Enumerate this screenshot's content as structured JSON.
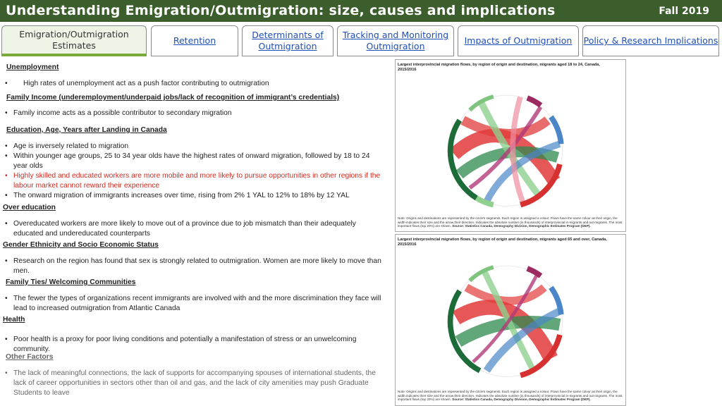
{
  "header": {
    "title": "Understanding Emigration/Outmigration: size, causes and implications",
    "term": "Fall 2019"
  },
  "tabs": [
    {
      "label": "Emigration/Outmigration Estimates"
    },
    {
      "label": "Retention"
    },
    {
      "label": "Determinants of Outmigration"
    },
    {
      "label": "Tracking and Monitoring Outmigration"
    },
    {
      "label": "Impacts of Outmigration"
    },
    {
      "label": "Policy & Research Implications"
    }
  ],
  "sections": {
    "unemployment": {
      "heading": "Unemployment",
      "b1": "High rates of unemployment act as a push factor contributing to outmigration"
    },
    "family_income": {
      "heading": "Family Income (underemployment/underpaid jobs/lack of recognition of immigrant’s credentials)",
      "b1": "Family income acts as a possible contributor to secondary migration"
    },
    "education": {
      "heading": "Education, Age, Years after Landing in Canada",
      "b1": "Age is inversely related to migration",
      "b2": "Within younger age groups, 25 to 34 year olds have the highest rates of onward migration, followed by 18 to 24 year olds",
      "b3": "Highly skilled and educated workers are more mobile and more likely to pursue opportunities in other regions if the labour market cannot reward their experience",
      "b4": "The onward migration of immigrants increases over time, rising from 2% 1 YAL to 12% to 18% by 12 YAL"
    },
    "over_education": {
      "heading": "Over education",
      "b1": "Overeducated workers are more likely to move out of a province due to job mismatch than their adequately educated and undereducated counterparts"
    },
    "gender": {
      "heading": "Gender Ethnicity and Socio Economic Status",
      "b1": "Research on the region has found that sex is strongly related to outmigration. Women are more likely to move than men."
    },
    "family_ties": {
      "heading": "Family Ties/ Welcoming Communities",
      "b1": "The fewer the types of organizations recent immigrants are involved with and the more discrimination they face will lead to increased outmigration from Atlantic Canada"
    },
    "health": {
      "heading": "Health",
      "b1": "Poor health is a proxy for poor living conditions and potentially a manifestation of stress or an unwelcoming community."
    },
    "other": {
      "heading": "Other Factors",
      "b1": "The lack of meaningful connections, the lack of supports for accompanying spouses of international students, the lack of career opportunities in sectors other than oil and gas, and the lack of city amenities may push Graduate Students to leave"
    }
  },
  "figures": [
    {
      "title": "Largest interprovincial migration flows, by region of origin and destination, migrants aged 18 to 24, Canada, 2015/2016",
      "note": "Note: Origins and destinations are represented by the circle's segments. Each region is assigned a colour. Flows have the same colour as their origin, the width indicates their size and the arrow their direction. Indicates the absolute number (in thousands) of interprovincial in-migrants and out-migrants. The most important flows (top 20%) are shown.",
      "source": "Source: Statistics Canada, Demography Division, Demographic Estimates Program (DEP)."
    },
    {
      "title": "Largest interprovincial migration flows, by region of origin and destination, migrants aged 65 and over, Canada, 2015/2016",
      "note": "Note: Origins and destinations are represented by the circle's segments. Each region is assigned a colour. Flows have the same colour as their origin, the width indicates their size and the arrow their direction. Indicates the absolute number (in thousands) of interprovincial in-migrants and out-migrants. The most important flows (top 20%) are shown.",
      "source": "Source: Statistics Canada, Demography Division, Demographic Estimates Program (DEP)."
    }
  ],
  "colors": {
    "header_bg": "#3c5e2c",
    "tab_active_accent": "#7aab3a",
    "link": "#1f4fb4",
    "highlight_red": "#d42a20"
  }
}
